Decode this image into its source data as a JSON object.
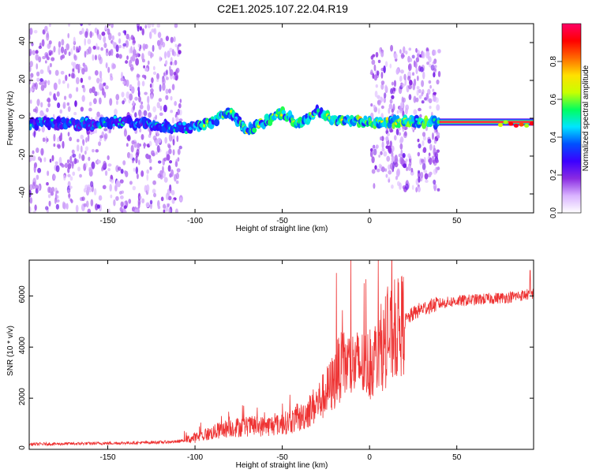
{
  "page_title": "C2E1.2025.107.22.04.R19",
  "chart_data": [
    {
      "type": "heatmap",
      "title": "C2E1.2025.107.22.04.R19",
      "xlabel": "Height of straight line (km)",
      "ylabel": "Frequency (Hz)",
      "xlim": [
        -195,
        94
      ],
      "ylim": [
        -50,
        50
      ],
      "x_ticks": [
        -150,
        -100,
        -50,
        0,
        50
      ],
      "y_ticks": [
        -40,
        -20,
        0,
        20,
        40
      ],
      "x_tick_labels": [
        "-150",
        "-100",
        "-50",
        "0",
        "50"
      ],
      "y_tick_labels": [
        "-40",
        "-20",
        "0",
        "20",
        "40"
      ],
      "colorbar": {
        "label": "Normalized spectral amplitude",
        "range": [
          0,
          1
        ],
        "ticks": [
          0.0,
          0.2,
          0.4,
          0.6,
          0.8
        ],
        "tick_labels": [
          "0.0",
          "0.2",
          "0.4",
          "0.6",
          "0.8"
        ],
        "colormap": [
          "#ffffff",
          "#d9b3ff",
          "#8a2be2",
          "#3b00ff",
          "#0050ff",
          "#00e5ff",
          "#00ff60",
          "#c8ff00",
          "#ffe000",
          "#ff6a00",
          "#ff0000",
          "#ff0066"
        ]
      },
      "signal_centerline": [
        {
          "x": -190,
          "f": -3
        },
        {
          "x": -160,
          "f": -3
        },
        {
          "x": -140,
          "f": -2
        },
        {
          "x": -120,
          "f": -4
        },
        {
          "x": -100,
          "f": -5
        },
        {
          "x": -90,
          "f": -2
        },
        {
          "x": -80,
          "f": 3
        },
        {
          "x": -70,
          "f": -6
        },
        {
          "x": -60,
          "f": -2
        },
        {
          "x": -50,
          "f": 3
        },
        {
          "x": -40,
          "f": -3
        },
        {
          "x": -30,
          "f": 4
        },
        {
          "x": -20,
          "f": -1
        },
        {
          "x": -10,
          "f": -1
        },
        {
          "x": 0,
          "f": -2
        },
        {
          "x": 10,
          "f": -2
        },
        {
          "x": 20,
          "f": -2
        },
        {
          "x": 30,
          "f": -2
        },
        {
          "x": 40,
          "f": -2
        },
        {
          "x": 60,
          "f": -2
        },
        {
          "x": 80,
          "f": -2
        },
        {
          "x": 94,
          "f": -3
        }
      ],
      "noise_regions": [
        {
          "x_from": -195,
          "x_to": -108,
          "f_from": -50,
          "f_to": 50
        },
        {
          "x_from": 1,
          "x_to": 40,
          "f_from": -38,
          "f_to": 37
        }
      ]
    },
    {
      "type": "line",
      "title": "",
      "xlabel": "Height of straight line (km)",
      "ylabel": "SNR (10 * v/v)",
      "xlim": [
        -195,
        94
      ],
      "ylim": [
        0,
        7400
      ],
      "x_ticks": [
        -150,
        -100,
        -50,
        0,
        50
      ],
      "y_ticks": [
        0,
        2000,
        4000,
        6000
      ],
      "x_tick_labels": [
        "-150",
        "-100",
        "-50",
        "0",
        "50"
      ],
      "y_tick_labels": [
        "0",
        "2000",
        "4000",
        "6000"
      ],
      "series": [
        {
          "color": "#ee3333",
          "x": [
            -195,
            -160,
            -130,
            -110,
            -100,
            -90,
            -80,
            -70,
            -60,
            -50,
            -40,
            -30,
            -25,
            -20,
            -18,
            -15,
            -10,
            -5,
            0,
            3,
            6,
            10,
            15,
            20,
            25,
            30,
            35,
            40,
            50,
            60,
            70,
            80,
            85,
            90,
            94
          ],
          "y": [
            200,
            230,
            260,
            300,
            450,
            650,
            850,
            900,
            900,
            1000,
            1200,
            1800,
            2200,
            2700,
            3100,
            3300,
            3300,
            3300,
            3300,
            3600,
            3800,
            4200,
            4600,
            5000,
            5300,
            5500,
            5600,
            5700,
            5800,
            5850,
            5900,
            5950,
            6000,
            6050,
            6100
          ]
        }
      ],
      "spikes": [
        {
          "x": -19,
          "y": 6900
        },
        {
          "x": 5,
          "y": 7400
        },
        {
          "x": 10,
          "y": 6000
        },
        {
          "x": 92,
          "y": 7000
        }
      ]
    }
  ]
}
